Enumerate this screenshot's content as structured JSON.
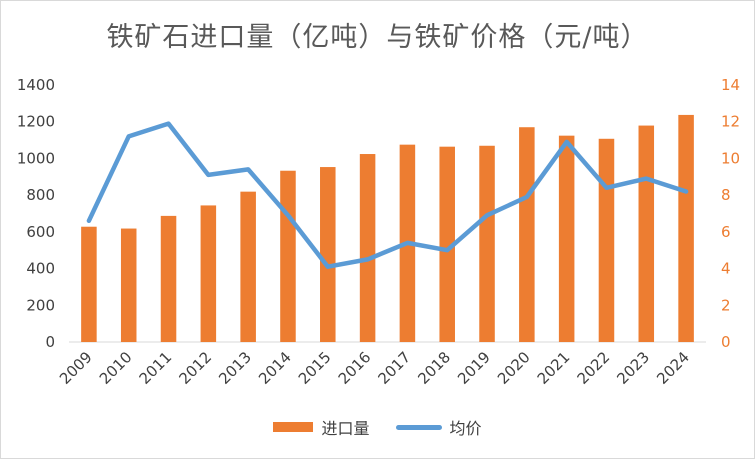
{
  "chart_data": {
    "type": "bar",
    "title": "铁矿石进口量（亿吨）与铁矿价格（元/吨）",
    "categories": [
      "2009",
      "2010",
      "2011",
      "2012",
      "2013",
      "2014",
      "2015",
      "2016",
      "2017",
      "2018",
      "2019",
      "2020",
      "2021",
      "2022",
      "2023",
      "2024"
    ],
    "series": [
      {
        "name": "进口量",
        "type": "bar",
        "axis": "left",
        "color": "#ed7d31",
        "values": [
          628,
          618,
          687,
          744,
          819,
          933,
          953,
          1024,
          1075,
          1064,
          1069,
          1170,
          1124,
          1107,
          1179,
          1237
        ]
      },
      {
        "name": "均价",
        "type": "line",
        "axis": "right",
        "color": "#5b9bd5",
        "values": [
          6.6,
          11.2,
          11.9,
          9.1,
          9.4,
          6.9,
          4.1,
          4.5,
          5.4,
          5.0,
          6.9,
          7.9,
          10.9,
          8.4,
          8.9,
          8.2
        ]
      }
    ],
    "y_left": {
      "min": 0,
      "max": 1400,
      "ticks": [
        "0",
        "200",
        "400",
        "600",
        "800",
        "1000",
        "1200",
        "1400"
      ]
    },
    "y_right": {
      "min": 0,
      "max": 14,
      "ticks": [
        "0",
        "2",
        "4",
        "6",
        "8",
        "10",
        "12",
        "14"
      ]
    },
    "grid": false,
    "legend_position": "bottom"
  }
}
